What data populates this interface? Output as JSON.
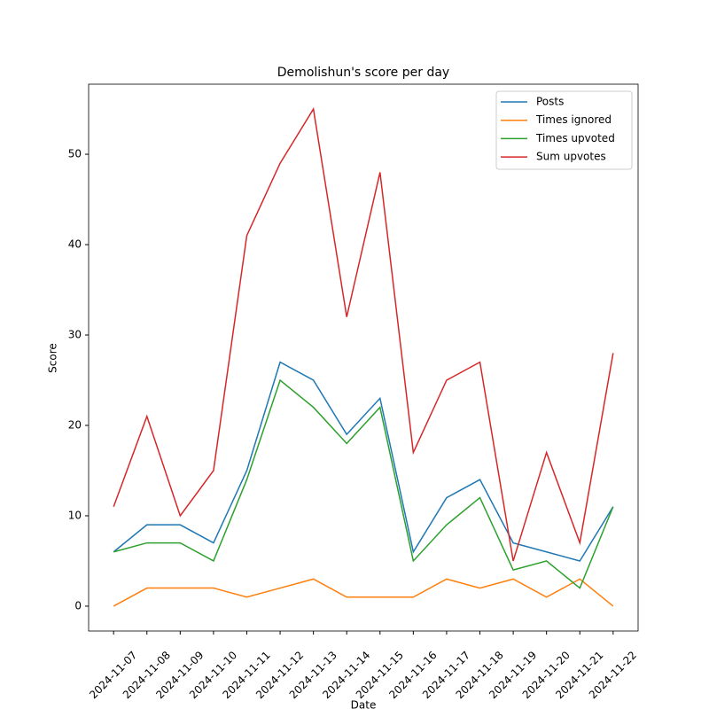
{
  "chart_data": {
    "type": "line",
    "title": "Demolishun's score per day",
    "x_label": "Date",
    "y_label": "Score",
    "categories": [
      "2024-11-07",
      "2024-11-08",
      "2024-11-09",
      "2024-11-10",
      "2024-11-11",
      "2024-11-12",
      "2024-11-13",
      "2024-11-14",
      "2024-11-15",
      "2024-11-16",
      "2024-11-17",
      "2024-11-18",
      "2024-11-19",
      "2024-11-20",
      "2024-11-21",
      "2024-11-22"
    ],
    "series": [
      {
        "name": "Posts",
        "color": "#1f77b4",
        "values": [
          6,
          9,
          9,
          7,
          15,
          27,
          25,
          19,
          23,
          6,
          12,
          14,
          7,
          6,
          5,
          11
        ]
      },
      {
        "name": "Times ignored",
        "color": "#ff7f0e",
        "values": [
          0,
          2,
          2,
          2,
          1,
          2,
          3,
          1,
          1,
          1,
          3,
          2,
          3,
          1,
          3,
          0
        ]
      },
      {
        "name": "Times upvoted",
        "color": "#2ca02c",
        "values": [
          6,
          7,
          7,
          5,
          14,
          25,
          22,
          18,
          22,
          5,
          9,
          12,
          4,
          5,
          2,
          11
        ]
      },
      {
        "name": "Sum upvotes",
        "color": "#d62728",
        "values": [
          11,
          21,
          10,
          15,
          41,
          49,
          55,
          32,
          48,
          17,
          25,
          27,
          5,
          17,
          7,
          28
        ]
      }
    ],
    "ylim": [
      -2.75,
      57.75
    ],
    "yticks": [
      0,
      10,
      20,
      30,
      40,
      50
    ],
    "legend": "upper right"
  }
}
